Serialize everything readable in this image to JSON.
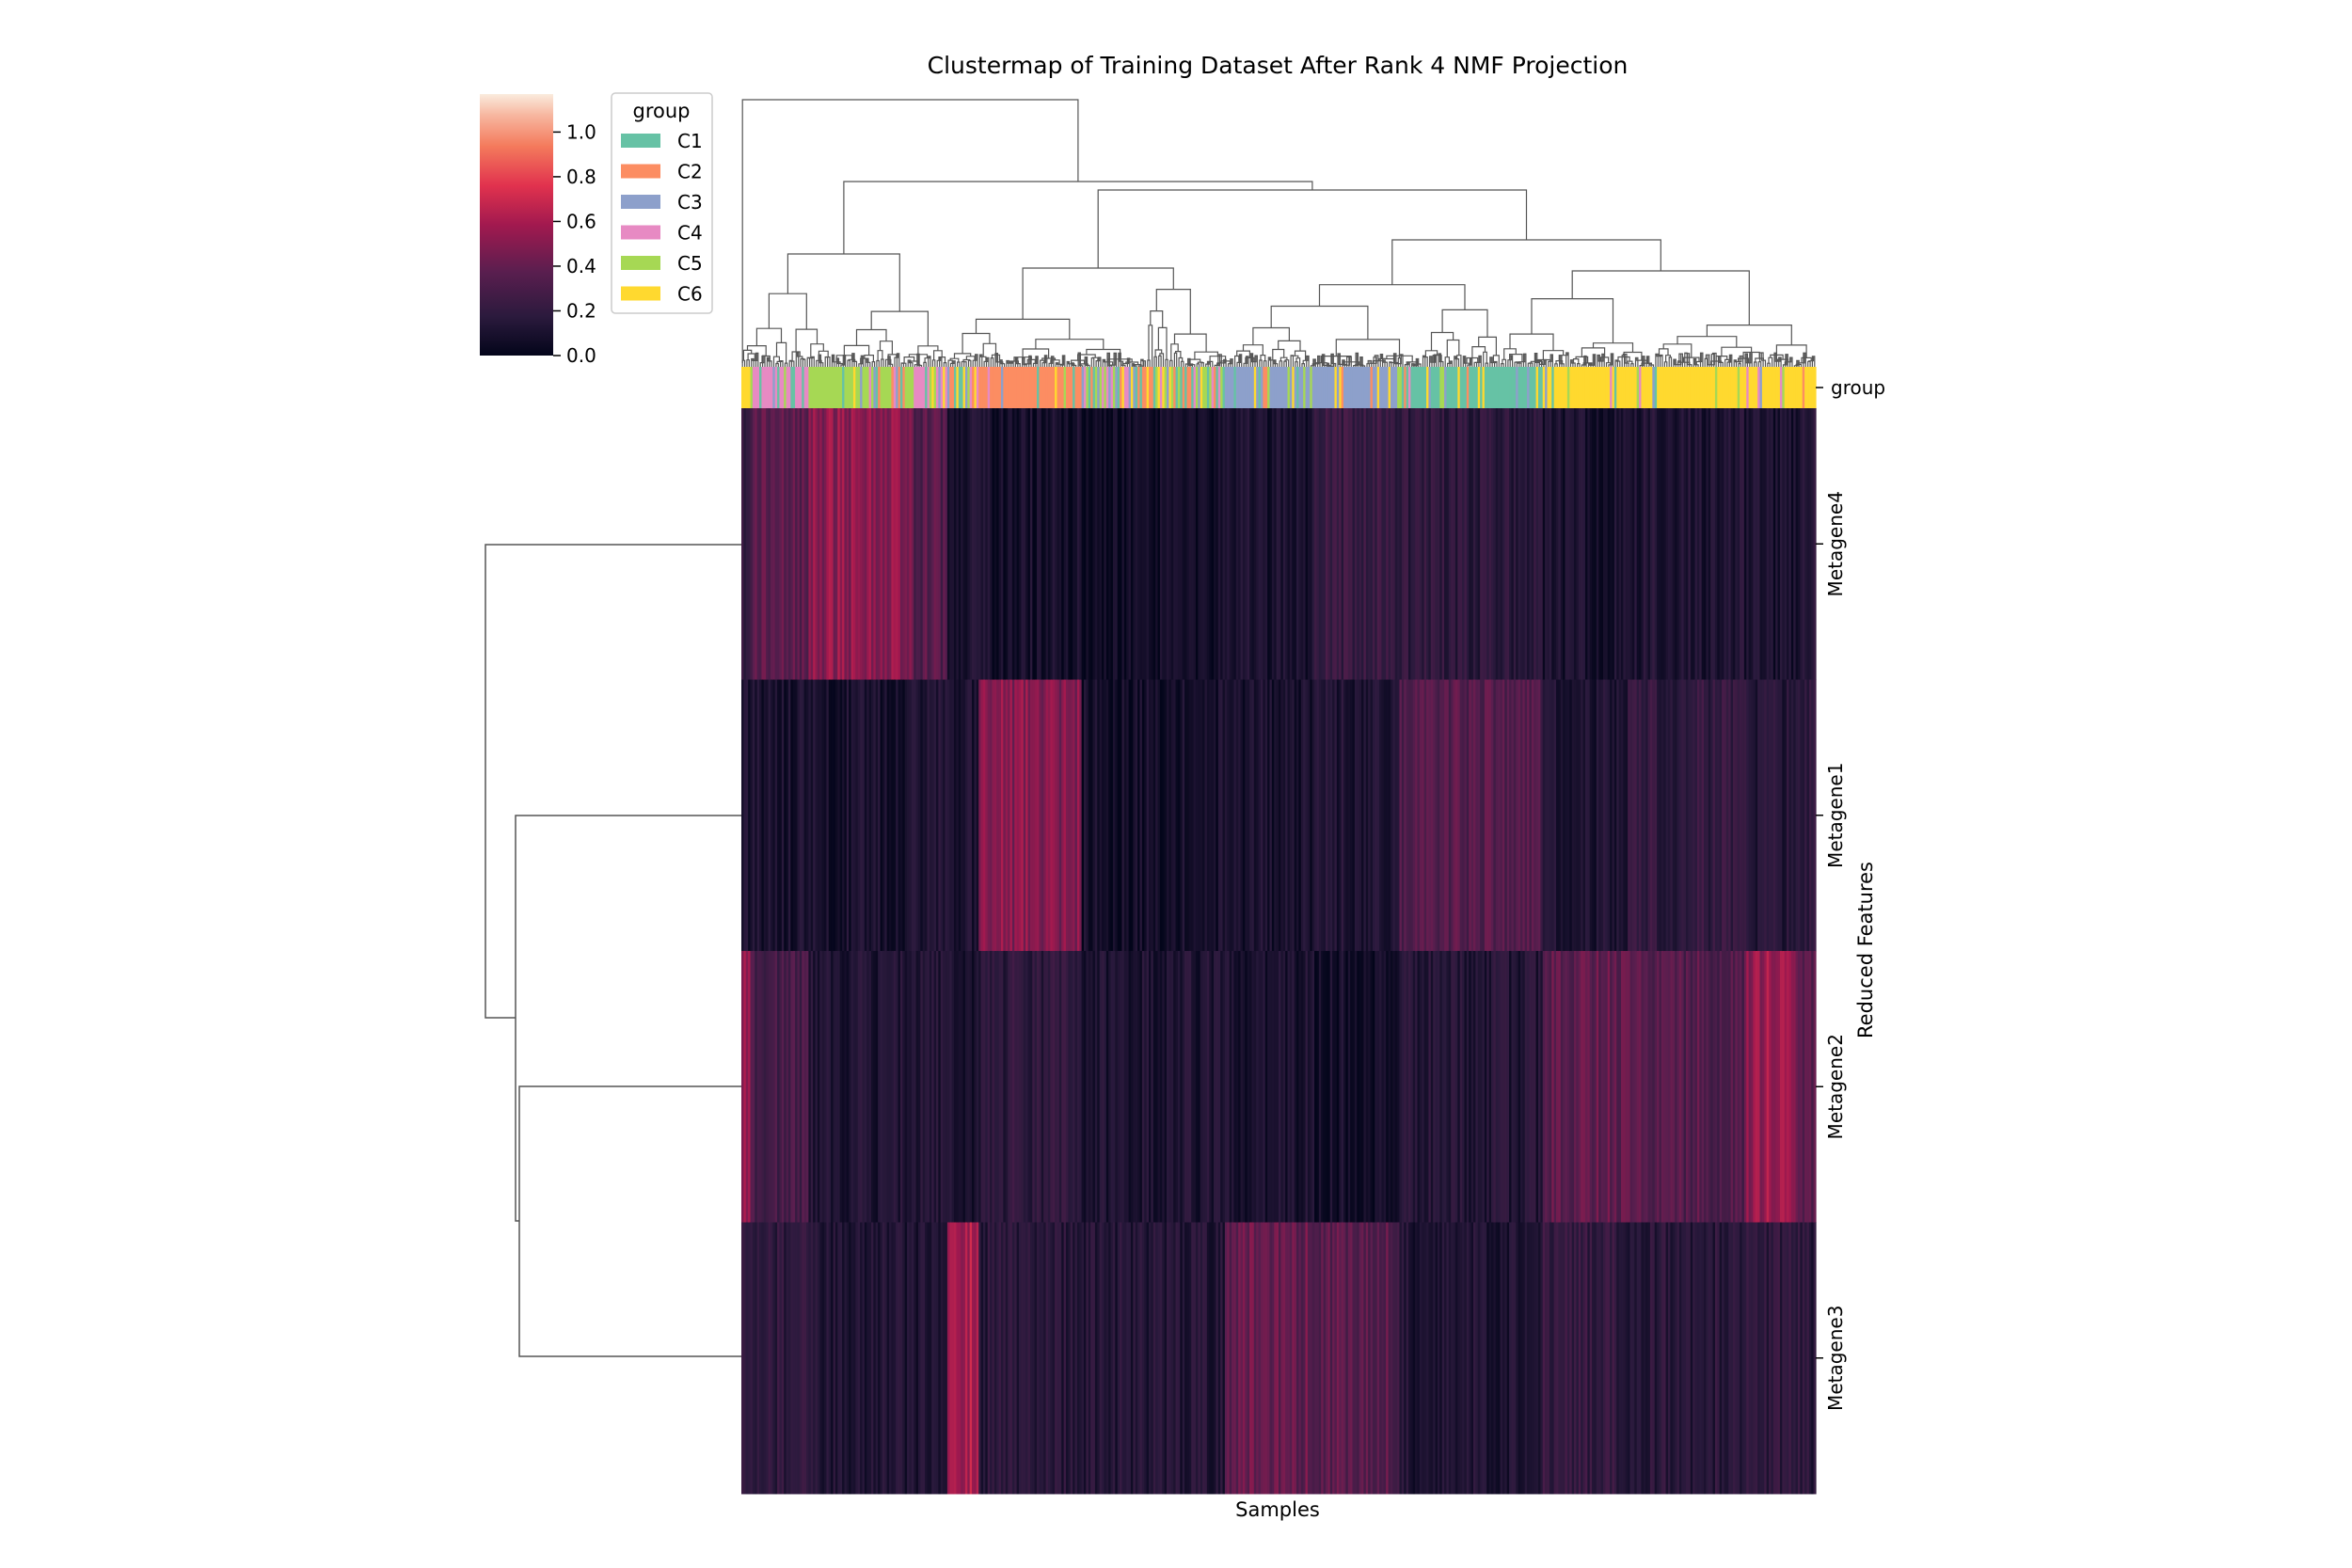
{
  "chart_data": {
    "type": "heatmap",
    "title": "Clustermap of Training Dataset After Rank 4 NMF Projection",
    "xlabel": "Samples",
    "ylabel": "Reduced Features",
    "row_labels": [
      "Metagene4",
      "Metagene1",
      "Metagene2",
      "Metagene3"
    ],
    "row_color_label": "group",
    "colorbar": {
      "ticks": [
        "0.0",
        "0.2",
        "0.4",
        "0.6",
        "0.8",
        "1.0"
      ],
      "tick_values": [
        0.0,
        0.2,
        0.4,
        0.6,
        0.8,
        1.0
      ],
      "range": [
        0.0,
        1.17
      ]
    },
    "legend": {
      "title": "group",
      "position": "top-left",
      "entries": [
        {
          "label": "C1",
          "color": "#66c2a5"
        },
        {
          "label": "C2",
          "color": "#fc8d62"
        },
        {
          "label": "C3",
          "color": "#8da0cb"
        },
        {
          "label": "C4",
          "color": "#e78ac3"
        },
        {
          "label": "C5",
          "color": "#a6d854"
        },
        {
          "label": "C6",
          "color": "#ffd92f"
        }
      ]
    },
    "n_samples": 480,
    "sample_segments": [
      {
        "n": 4,
        "group": "C6",
        "values": [
          0.18,
          0.12,
          0.55,
          0.2
        ]
      },
      {
        "n": 26,
        "group": "C4",
        "values": [
          0.36,
          0.1,
          0.28,
          0.18
        ]
      },
      {
        "n": 46,
        "group": "C5",
        "values": [
          0.52,
          0.1,
          0.12,
          0.12
        ]
      },
      {
        "n": 16,
        "group": "C4",
        "values": [
          0.34,
          0.14,
          0.14,
          0.12
        ]
      },
      {
        "n": 14,
        "group": "mix",
        "values": [
          0.1,
          0.12,
          0.1,
          0.6
        ]
      },
      {
        "n": 46,
        "group": "C2",
        "values": [
          0.08,
          0.5,
          0.18,
          0.16
        ]
      },
      {
        "n": 64,
        "group": "mix",
        "values": [
          0.06,
          0.08,
          0.12,
          0.14
        ]
      },
      {
        "n": 40,
        "group": "C3",
        "values": [
          0.1,
          0.1,
          0.1,
          0.4
        ]
      },
      {
        "n": 38,
        "group": "C3",
        "values": [
          0.22,
          0.12,
          0.08,
          0.36
        ]
      },
      {
        "n": 64,
        "group": "C1",
        "values": [
          0.18,
          0.34,
          0.14,
          0.12
        ]
      },
      {
        "n": 38,
        "group": "C6",
        "values": [
          0.1,
          0.12,
          0.38,
          0.2
        ]
      },
      {
        "n": 52,
        "group": "C6",
        "values": [
          0.12,
          0.2,
          0.34,
          0.16
        ]
      },
      {
        "n": 24,
        "group": "C6",
        "values": [
          0.1,
          0.15,
          0.55,
          0.18
        ]
      },
      {
        "n": 8,
        "group": "C6",
        "values": [
          0.14,
          0.2,
          0.4,
          0.16
        ]
      }
    ]
  }
}
